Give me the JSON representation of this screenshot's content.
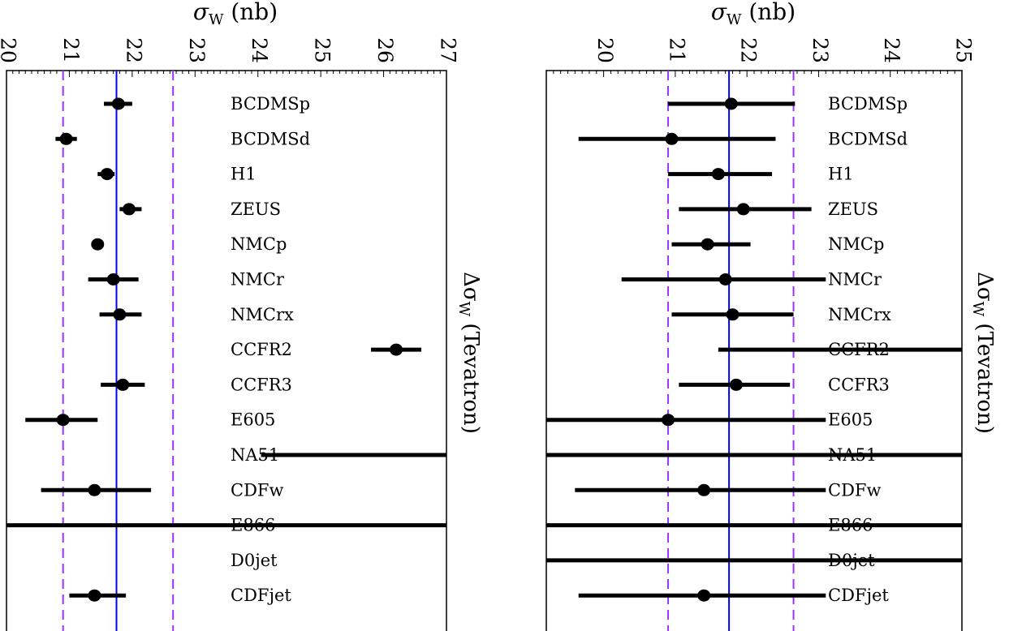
{
  "chart_data": [
    {
      "type": "scatter",
      "xlabel": "σ_W (nb)",
      "xlabel_main": "σ",
      "xlabel_sub": "W",
      "xlabel_rest": " (nb)",
      "side_label_main": "Δσ",
      "side_label_sub": "W",
      "side_label_rest": " (Tevatron)",
      "xlim": [
        20,
        27
      ],
      "ticks": [
        "20",
        "21",
        "22",
        "23",
        "24",
        "25",
        "26",
        "27"
      ],
      "central_value": 21.75,
      "band": [
        20.9,
        22.65
      ],
      "categories": [
        "BCDMSp",
        "BCDMSd",
        "H1",
        "ZEUS",
        "NMCp",
        "NMCr",
        "NMCrx",
        "CCFR2",
        "CCFR3",
        "E605",
        "NA51",
        "CDFw",
        "E866",
        "D0jet",
        "CDFjet"
      ],
      "points": [
        {
          "label": "BCDMSp",
          "value": 21.78,
          "low": 21.55,
          "high": 22.0
        },
        {
          "label": "BCDMSd",
          "value": 20.95,
          "low": 20.78,
          "high": 21.12
        },
        {
          "label": "H1",
          "value": 21.6,
          "low": 21.45,
          "high": 21.72
        },
        {
          "label": "ZEUS",
          "value": 21.95,
          "low": 21.8,
          "high": 22.15
        },
        {
          "label": "NMCp",
          "value": 21.45,
          "low": 21.35,
          "high": 21.55
        },
        {
          "label": "NMCr",
          "value": 21.7,
          "low": 21.3,
          "high": 22.1
        },
        {
          "label": "NMCrx",
          "value": 21.8,
          "low": 21.48,
          "high": 22.15
        },
        {
          "label": "CCFR2",
          "value": 26.2,
          "low": 25.8,
          "high": 26.6
        },
        {
          "label": "CCFR3",
          "value": 21.85,
          "low": 21.5,
          "high": 22.2
        },
        {
          "label": "E605",
          "value": 20.9,
          "low": 20.3,
          "high": 21.45
        },
        {
          "label": "NA51",
          "value": null,
          "low": 24.05,
          "high": 27.0
        },
        {
          "label": "CDFw",
          "value": 21.4,
          "low": 20.55,
          "high": 22.3
        },
        {
          "label": "E866",
          "value": null,
          "low": 20.0,
          "high": 27.0
        },
        {
          "label": "D0jet",
          "value": null,
          "low": null,
          "high": null
        },
        {
          "label": "CDFjet",
          "value": 21.4,
          "low": 21.0,
          "high": 21.9
        }
      ]
    },
    {
      "type": "scatter",
      "xlabel": "σ_W (nb)",
      "xlabel_main": "σ",
      "xlabel_sub": "W",
      "xlabel_rest": " (nb)",
      "side_label_main": "Δσ",
      "side_label_sub": "W",
      "side_label_rest": " (Tevatron)",
      "xlim": [
        19.2,
        25
      ],
      "ticks": [
        "20",
        "21",
        "22",
        "23",
        "24",
        "25"
      ],
      "central_value": 21.75,
      "band": [
        20.9,
        22.65
      ],
      "categories": [
        "BCDMSp",
        "BCDMSd",
        "H1",
        "ZEUS",
        "NMCp",
        "NMCr",
        "NMCrx",
        "CCFR2",
        "CCFR3",
        "E605",
        "NA51",
        "CDFw",
        "E866",
        "D0jet",
        "CDFjet"
      ],
      "points": [
        {
          "label": "BCDMSp",
          "value": 21.78,
          "low": 20.9,
          "high": 22.67
        },
        {
          "label": "BCDMSd",
          "value": 20.95,
          "low": 19.65,
          "high": 22.4
        },
        {
          "label": "H1",
          "value": 21.6,
          "low": 20.9,
          "high": 22.35
        },
        {
          "label": "ZEUS",
          "value": 21.95,
          "low": 21.05,
          "high": 22.9
        },
        {
          "label": "NMCp",
          "value": 21.45,
          "low": 20.95,
          "high": 22.05
        },
        {
          "label": "NMCr",
          "value": 21.7,
          "low": 20.25,
          "high": 23.1
        },
        {
          "label": "NMCrx",
          "value": 21.8,
          "low": 20.95,
          "high": 22.65
        },
        {
          "label": "CCFR2",
          "value": null,
          "low": 21.6,
          "high": 25.0
        },
        {
          "label": "CCFR3",
          "value": 21.85,
          "low": 21.05,
          "high": 22.6
        },
        {
          "label": "E605",
          "value": 20.9,
          "low": 19.2,
          "high": 23.1
        },
        {
          "label": "NA51",
          "value": null,
          "low": 19.2,
          "high": 25.0
        },
        {
          "label": "CDFw",
          "value": 21.4,
          "low": 19.6,
          "high": 23.1
        },
        {
          "label": "E866",
          "value": null,
          "low": 19.2,
          "high": 25.0
        },
        {
          "label": "D0jet",
          "value": null,
          "low": 19.2,
          "high": 25.0
        },
        {
          "label": "CDFjet",
          "value": 21.4,
          "low": 19.65,
          "high": 23.1
        }
      ]
    }
  ],
  "colors": {
    "central_line": "#0000ff",
    "band_lines": "#9933ff",
    "points": "#000000",
    "frame": "#000000"
  }
}
